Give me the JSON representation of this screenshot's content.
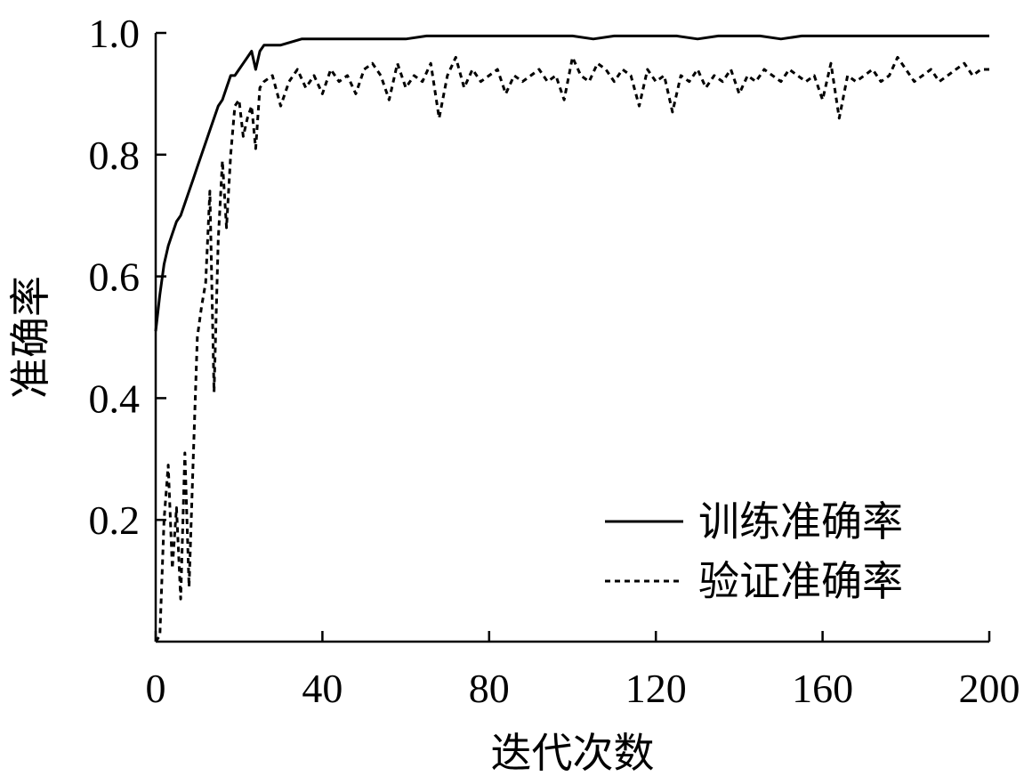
{
  "chart_data": {
    "type": "line",
    "title": "",
    "xlabel": "迭代次数",
    "ylabel": "准确率",
    "xlim": [
      0,
      200
    ],
    "ylim": [
      0,
      1.0
    ],
    "x_ticks": [
      0,
      40,
      80,
      120,
      160,
      200
    ],
    "y_ticks": [
      0.2,
      0.4,
      0.6,
      0.8,
      1.0
    ],
    "y_tick_labels": [
      "0.2",
      "0.4",
      "0.6",
      "0.8",
      "1.0"
    ],
    "grid": false,
    "legend_position": "bottom-right",
    "series": [
      {
        "name": "训练准确率",
        "style": "solid",
        "color": "#000000",
        "x": [
          0,
          1,
          2,
          3,
          4,
          5,
          6,
          7,
          8,
          9,
          10,
          11,
          12,
          13,
          14,
          15,
          16,
          17,
          18,
          19,
          20,
          21,
          22,
          23,
          24,
          25,
          26,
          27,
          28,
          30,
          35,
          40,
          45,
          50,
          55,
          60,
          65,
          70,
          75,
          80,
          85,
          90,
          95,
          100,
          105,
          110,
          115,
          120,
          125,
          130,
          135,
          140,
          145,
          150,
          155,
          160,
          165,
          170,
          175,
          180,
          185,
          190,
          195,
          200
        ],
        "values": [
          0.51,
          0.57,
          0.62,
          0.65,
          0.67,
          0.69,
          0.7,
          0.72,
          0.74,
          0.76,
          0.78,
          0.8,
          0.82,
          0.84,
          0.86,
          0.88,
          0.89,
          0.91,
          0.93,
          0.93,
          0.94,
          0.95,
          0.96,
          0.97,
          0.94,
          0.97,
          0.98,
          0.98,
          0.98,
          0.98,
          0.99,
          0.99,
          0.99,
          0.99,
          0.99,
          0.99,
          0.995,
          0.995,
          0.995,
          0.995,
          0.995,
          0.995,
          0.995,
          0.995,
          0.99,
          0.995,
          0.995,
          0.995,
          0.995,
          0.99,
          0.995,
          0.995,
          0.995,
          0.99,
          0.995,
          0.995,
          0.995,
          0.995,
          0.995,
          0.995,
          0.995,
          0.995,
          0.995,
          0.995
        ]
      },
      {
        "name": "验证准确率",
        "style": "dashed",
        "color": "#000000",
        "x": [
          0,
          1,
          2,
          3,
          4,
          5,
          6,
          7,
          8,
          9,
          10,
          11,
          12,
          13,
          14,
          15,
          16,
          17,
          18,
          19,
          20,
          21,
          22,
          23,
          24,
          25,
          26,
          28,
          30,
          32,
          34,
          36,
          38,
          40,
          42,
          44,
          46,
          48,
          50,
          52,
          54,
          56,
          58,
          60,
          62,
          64,
          66,
          68,
          70,
          72,
          74,
          76,
          78,
          80,
          82,
          84,
          86,
          88,
          90,
          92,
          94,
          96,
          98,
          100,
          102,
          104,
          106,
          108,
          110,
          112,
          114,
          116,
          118,
          120,
          122,
          124,
          126,
          128,
          130,
          132,
          134,
          136,
          138,
          140,
          142,
          144,
          146,
          148,
          150,
          152,
          154,
          156,
          158,
          160,
          162,
          164,
          166,
          168,
          170,
          172,
          174,
          176,
          178,
          180,
          182,
          184,
          186,
          188,
          190,
          192,
          194,
          196,
          198,
          200
        ],
        "values": [
          0.0,
          0.01,
          0.2,
          0.29,
          0.12,
          0.22,
          0.07,
          0.31,
          0.09,
          0.3,
          0.5,
          0.55,
          0.59,
          0.74,
          0.41,
          0.66,
          0.79,
          0.68,
          0.8,
          0.88,
          0.89,
          0.83,
          0.86,
          0.88,
          0.81,
          0.91,
          0.92,
          0.93,
          0.88,
          0.92,
          0.94,
          0.91,
          0.93,
          0.9,
          0.94,
          0.92,
          0.93,
          0.9,
          0.94,
          0.95,
          0.93,
          0.89,
          0.95,
          0.91,
          0.93,
          0.92,
          0.95,
          0.86,
          0.93,
          0.96,
          0.91,
          0.94,
          0.92,
          0.93,
          0.94,
          0.9,
          0.93,
          0.92,
          0.93,
          0.94,
          0.92,
          0.93,
          0.89,
          0.96,
          0.93,
          0.92,
          0.95,
          0.94,
          0.92,
          0.94,
          0.93,
          0.88,
          0.94,
          0.92,
          0.93,
          0.87,
          0.93,
          0.92,
          0.94,
          0.91,
          0.93,
          0.92,
          0.94,
          0.9,
          0.93,
          0.92,
          0.94,
          0.93,
          0.92,
          0.94,
          0.93,
          0.92,
          0.93,
          0.89,
          0.95,
          0.86,
          0.93,
          0.92,
          0.93,
          0.94,
          0.92,
          0.93,
          0.96,
          0.94,
          0.92,
          0.93,
          0.94,
          0.92,
          0.93,
          0.94,
          0.95,
          0.93,
          0.94,
          0.94
        ]
      }
    ]
  }
}
